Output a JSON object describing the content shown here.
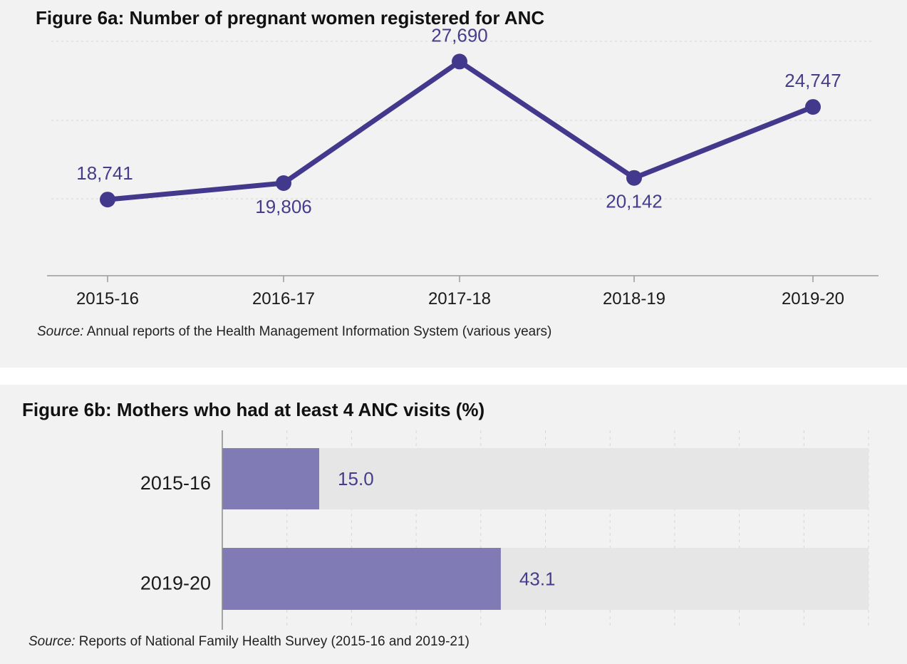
{
  "colors": {
    "line": "#43398c",
    "bar": "#807bb4",
    "bar_track": "#e6e6e6",
    "label": "#463d8a",
    "panel_bg": "#f2f2f2"
  },
  "chart_data": [
    {
      "type": "line",
      "title": "Figure 6a: Number of pregnant women registered for ANC",
      "categories": [
        "2015-16",
        "2016-17",
        "2017-18",
        "2018-19",
        "2019-20"
      ],
      "values": [
        18741,
        19806,
        27690,
        20142,
        24747
      ],
      "labels": [
        "18,741",
        "19,806",
        "27,690",
        "20,142",
        "24,747"
      ],
      "label_placement": [
        "above",
        "below",
        "above",
        "below",
        "above"
      ],
      "ylim": [
        13800,
        29000
      ],
      "grid": true,
      "xlabel": "",
      "ylabel": "",
      "source_prefix": "Source:",
      "source_text": " Annual reports of the Health Management Information System (various years)"
    },
    {
      "type": "bar",
      "orientation": "horizontal",
      "title": "Figure 6b: Mothers who had at least 4 ANC visits (%)",
      "categories": [
        "2015-16",
        "2019-20"
      ],
      "values": [
        15.0,
        43.1
      ],
      "labels": [
        "15.0",
        "43.1"
      ],
      "xlim": [
        0,
        100
      ],
      "grid": true,
      "xlabel": "",
      "ylabel": "",
      "source_prefix": "Source:",
      "source_text": " Reports of National Family Health Survey (2015-16 and 2019-21)"
    }
  ]
}
